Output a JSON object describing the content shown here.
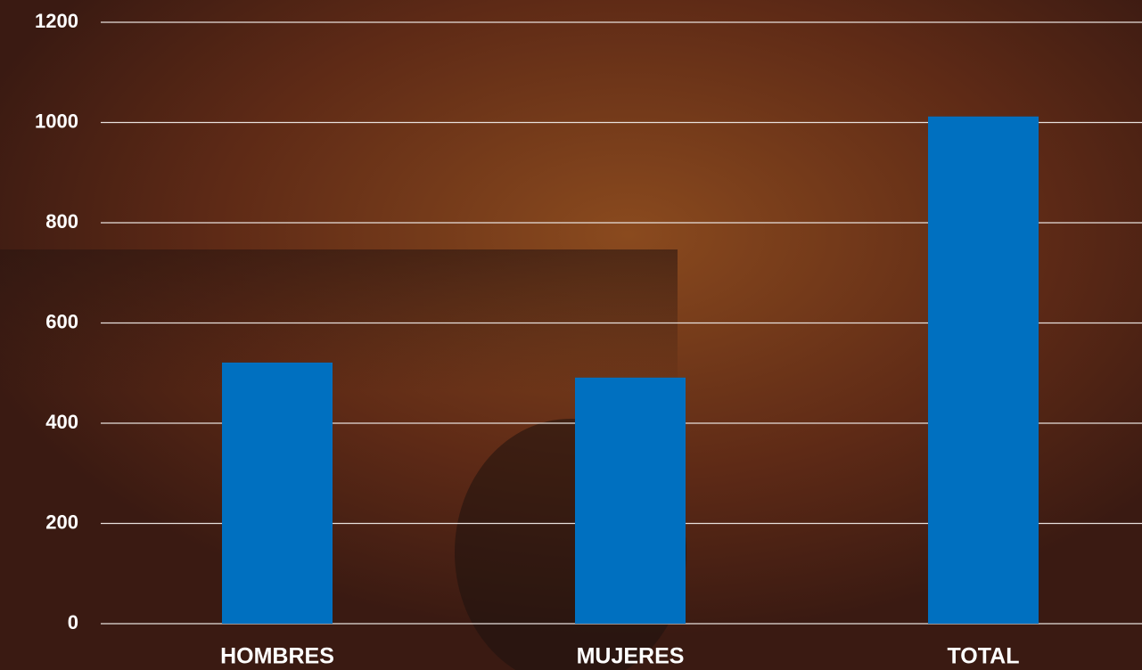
{
  "chart_data": {
    "type": "bar",
    "categories": [
      "HOMBRES",
      "MUJERES",
      "TOTAL"
    ],
    "values": [
      521,
      491,
      1012
    ],
    "color": "#0070c0",
    "ylim": [
      0,
      1200
    ],
    "yticks": [
      0,
      200,
      400,
      600,
      800,
      1000,
      1200
    ],
    "grid": true
  }
}
